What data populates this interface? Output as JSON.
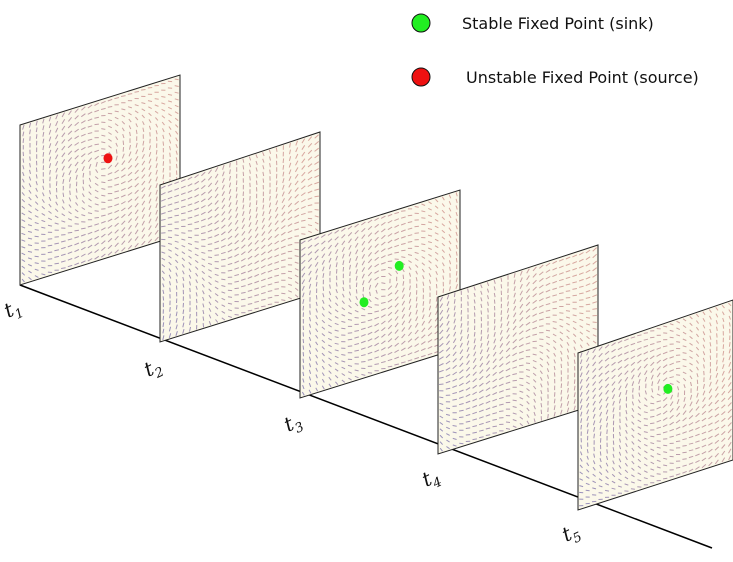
{
  "legend": {
    "items": [
      {
        "label": "Stable Fixed Point (sink)",
        "color": "#22ee22"
      },
      {
        "label": "Unstable Fixed Point (source)",
        "color": "#ee1111"
      }
    ]
  },
  "timeline": {
    "panels": [
      {
        "label_base": "t",
        "label_sub": "1",
        "fixed_points": [
          {
            "type": "source",
            "u": 0.55,
            "v": 0.38
          }
        ]
      },
      {
        "label_base": "t",
        "label_sub": "2",
        "fixed_points": []
      },
      {
        "label_base": "t",
        "label_sub": "3",
        "fixed_points": [
          {
            "type": "sink",
            "u": 0.4,
            "v": 0.52
          },
          {
            "type": "sink",
            "u": 0.62,
            "v": 0.36
          }
        ]
      },
      {
        "label_base": "t",
        "label_sub": "4",
        "fixed_points": []
      },
      {
        "label_base": "t",
        "label_sub": "5",
        "fixed_points": [
          {
            "type": "sink",
            "u": 0.58,
            "v": 0.42
          }
        ]
      }
    ]
  },
  "colors": {
    "panel_fill": "#fbf8ea",
    "panel_stroke": "#222222",
    "arrow_cool": "#6a63a8",
    "arrow_warm": "#c9857f",
    "axis": "#000000",
    "source": "#ee1111",
    "sink": "#22ee22"
  }
}
